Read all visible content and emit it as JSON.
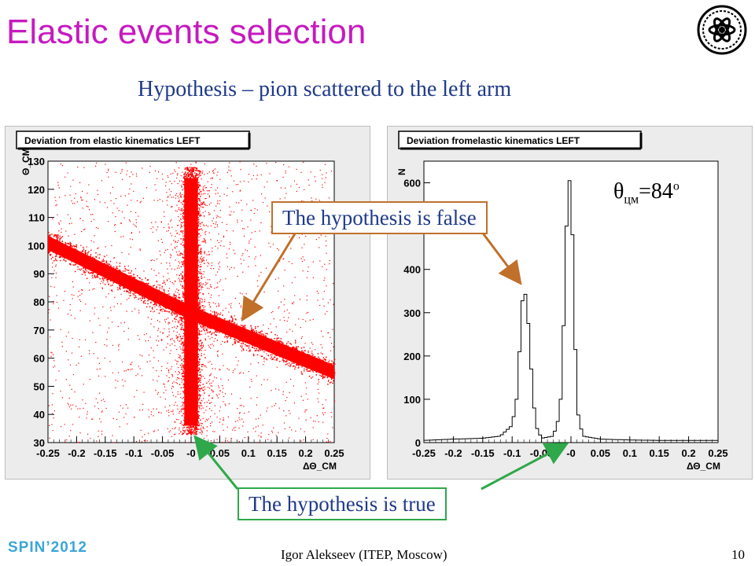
{
  "slide": {
    "title": "Elastic events selection",
    "subtitle": "Hypothesis – pion scattered to the left arm",
    "logo_icon": "itep-atom-logo-icon",
    "callout_false": "The hypothesis is false",
    "callout_true": "The hypothesis is true",
    "annotation_theta": "θ",
    "annotation_theta_sub": "цм",
    "annotation_theta_value": "=84",
    "annotation_theta_sup": "o",
    "footer_conference": "SPIN’2012",
    "footer_author": "Igor Alekseev (ITEP, Moscow)",
    "page_number": "10",
    "colors": {
      "title": "#c61ac0",
      "subtitle": "#1f3a8a",
      "scatter": "#ff0000",
      "callout_false_border": "#c0702a",
      "callout_true_border": "#2ea84a",
      "footer_conference": "#3aa6d9"
    }
  },
  "chart_data": [
    {
      "type": "scatter",
      "title": "Deviation from elastic kinematics LEFT",
      "xlabel": "ΔΘ_CM",
      "ylabel": "Θ_CM",
      "xlim": [
        -0.25,
        0.25
      ],
      "ylim": [
        30,
        130
      ],
      "x_ticks": [
        "-0.25",
        "-0.2",
        "-0.15",
        "-0.1",
        "-0.05",
        "-0",
        "0.05",
        "0.1",
        "0.15",
        "0.2",
        "0.25"
      ],
      "y_ticks": [
        "30",
        "40",
        "50",
        "60",
        "70",
        "80",
        "90",
        "100",
        "110",
        "120",
        "130"
      ],
      "series": [
        {
          "band": "vertical",
          "x": 0.0,
          "y_range": [
            33,
            128
          ]
        },
        {
          "band": "diagonal",
          "points": [
            [
              -0.25,
              101
            ],
            [
              0.0,
              76
            ],
            [
              0.25,
              55
            ]
          ]
        }
      ]
    },
    {
      "type": "line",
      "title": "Deviation fromelastic kinematics LEFT",
      "xlabel": "ΔΘ_CM",
      "ylabel": "N",
      "xlim": [
        -0.25,
        0.25
      ],
      "ylim": [
        0,
        650
      ],
      "x_ticks": [
        "-0.25",
        "-0.2",
        "-0.15",
        "-0.1",
        "-0.05",
        "-0",
        "0.05",
        "0.1",
        "0.15",
        "0.2",
        "0.25"
      ],
      "y_ticks": [
        "0",
        "100",
        "200",
        "300",
        "400",
        "500",
        "600"
      ],
      "x": [
        -0.25,
        -0.2,
        -0.15,
        -0.12,
        -0.1,
        -0.09,
        -0.085,
        -0.08,
        -0.075,
        -0.07,
        -0.065,
        -0.06,
        -0.05,
        -0.03,
        -0.02,
        -0.015,
        -0.01,
        -0.005,
        0.0,
        0.005,
        0.01,
        0.02,
        0.05,
        0.1,
        0.15,
        0.2,
        0.25
      ],
      "values": [
        5,
        8,
        10,
        15,
        40,
        120,
        300,
        355,
        330,
        220,
        120,
        40,
        10,
        15,
        60,
        140,
        400,
        600,
        610,
        350,
        80,
        15,
        8,
        6,
        5,
        5,
        5
      ]
    }
  ]
}
